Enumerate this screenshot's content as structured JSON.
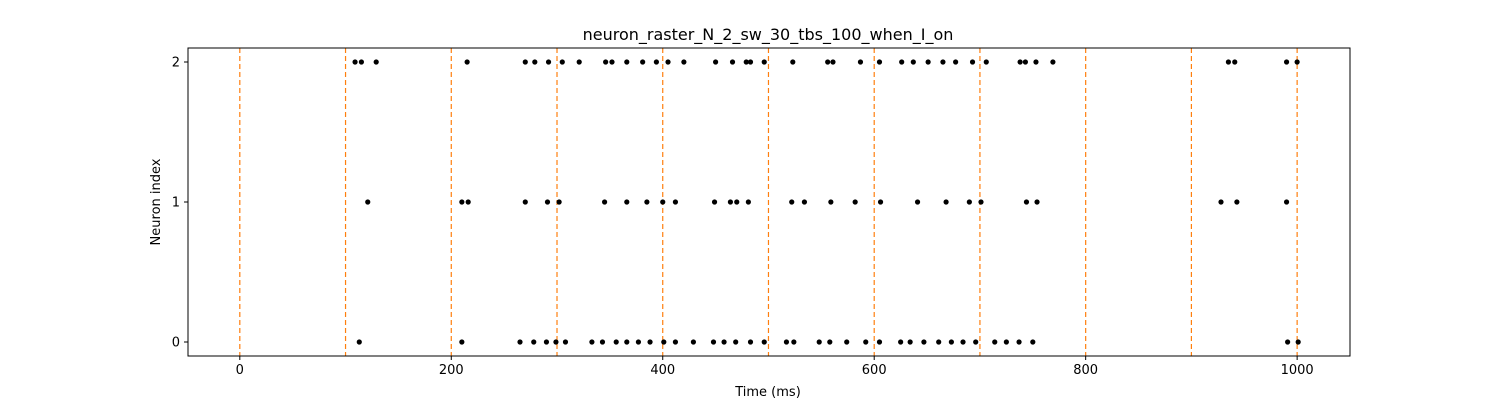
{
  "chart_data": {
    "type": "scatter",
    "title": "neuron_raster_N_2_sw_30_tbs_100_when_I_on",
    "xlabel": "Time (ms)",
    "ylabel": "Neuron index",
    "xlim": [
      -49,
      1050
    ],
    "ylim": [
      -0.1,
      2.1
    ],
    "xticks": [
      0,
      200,
      400,
      600,
      800,
      1000
    ],
    "yticks": [
      0,
      1,
      2
    ],
    "grid": false,
    "marker_color": "#000000",
    "vline_color": "#ff7f0e",
    "vlines": [
      0,
      100,
      200,
      300,
      400,
      500,
      600,
      700,
      800,
      900,
      1000
    ],
    "series": [
      {
        "neuron": 0,
        "x": [
          113,
          210,
          265,
          278,
          290,
          299,
          308,
          333,
          343,
          356,
          366,
          377,
          388,
          401,
          412,
          429,
          448,
          458,
          469,
          483,
          496,
          517,
          524,
          548,
          558,
          574,
          592,
          605,
          625,
          634,
          647,
          661,
          673,
          684,
          696,
          714,
          725,
          737,
          750,
          991,
          1001
        ]
      },
      {
        "neuron": 1,
        "x": [
          121,
          210,
          216,
          270,
          291,
          302,
          345,
          366,
          385,
          400,
          412,
          449,
          464,
          470,
          481,
          522,
          534,
          559,
          582,
          606,
          641,
          668,
          690,
          701,
          744,
          754,
          928,
          943,
          990
        ]
      },
      {
        "neuron": 2,
        "x": [
          109,
          115,
          129,
          215,
          270,
          279,
          292,
          305,
          321,
          346,
          352,
          366,
          381,
          394,
          405,
          420,
          450,
          466,
          479,
          483,
          496,
          523,
          556,
          561,
          587,
          605,
          626,
          637,
          651,
          665,
          677,
          693,
          706,
          738,
          743,
          753,
          769,
          935,
          941,
          990,
          1000
        ]
      }
    ]
  }
}
